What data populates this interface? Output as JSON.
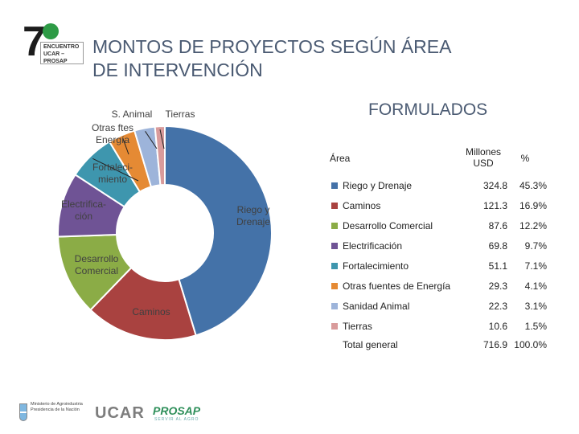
{
  "slide": {
    "title": "MONTOS DE PROYECTOS SEGÚN ÁREA DE INTERVENCIÓN",
    "chart_heading": "FORMULADOS"
  },
  "logo": {
    "seven": "7",
    "line1": "ENCUENTRO",
    "line2": "UCAR – PROSAP"
  },
  "footer": {
    "ministerio": "Ministerio de Agroindustria Presidencia de la Nación",
    "ucar": "UCAR",
    "prosap": "PROSAP",
    "prosap_sub": "SERVIR AL AGRO"
  },
  "table": {
    "header_area": "Área",
    "header_millones": "Millones USD",
    "header_pct": "%",
    "total_label": "Total general",
    "total_value": "716.9",
    "total_pct": "100.0%"
  },
  "chart_data": {
    "type": "pie",
    "style": "donut",
    "title": "FORMULADOS",
    "slices": [
      {
        "name": "Riego y Drenaje",
        "chart_label": "Riego y Drenaje",
        "value": 324.8,
        "pct": "45.3%",
        "value_text": "324.8",
        "color": "#4472a8"
      },
      {
        "name": "Caminos",
        "chart_label": "Caminos",
        "value": 121.3,
        "pct": "16.9%",
        "value_text": "121.3",
        "color": "#a94240"
      },
      {
        "name": "Desarrollo Comercial",
        "chart_label": "Desarrollo Comercial",
        "value": 87.6,
        "pct": "12.2%",
        "value_text": "87.6",
        "color": "#8bac46"
      },
      {
        "name": "Electrificación",
        "chart_label": "Electrifica-ción",
        "value": 69.8,
        "pct": "9.7%",
        "value_text": "69.8",
        "color": "#6f5395"
      },
      {
        "name": "Fortalecimiento",
        "chart_label": "Fortaleci-miento",
        "value": 51.1,
        "pct": "7.1%",
        "value_text": "51.1",
        "color": "#3e96ae"
      },
      {
        "name": "Otras fuentes de Energía",
        "chart_label": "Otras ftes Energía",
        "value": 29.3,
        "pct": "4.1%",
        "value_text": "29.3",
        "color": "#e58a34"
      },
      {
        "name": "Sanidad Animal",
        "chart_label": "S. Animal",
        "value": 22.3,
        "pct": "3.1%",
        "value_text": "22.3",
        "color": "#9db4da"
      },
      {
        "name": "Tierras",
        "chart_label": "Tierras",
        "value": 10.6,
        "pct": "1.5%",
        "value_text": "10.6",
        "color": "#d99b9b"
      }
    ],
    "legend": "table-right"
  }
}
